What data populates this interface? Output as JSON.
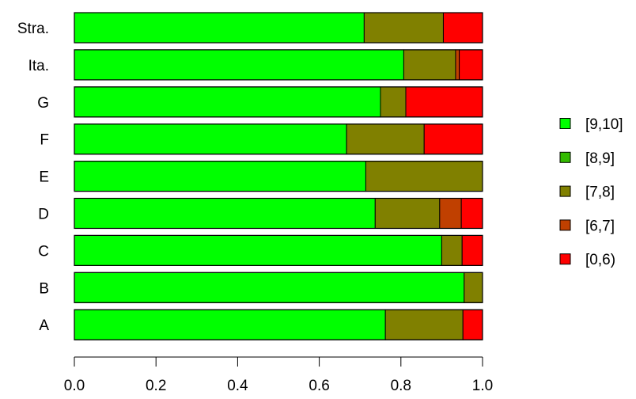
{
  "chart_data": {
    "type": "bar",
    "orientation": "horizontal",
    "stacked": true,
    "title": "",
    "xlabel": "",
    "ylabel": "",
    "xlim": [
      0,
      1
    ],
    "x_ticks": [
      0.0,
      0.2,
      0.4,
      0.6,
      0.8,
      1.0
    ],
    "x_tick_labels": [
      "0.0",
      "0.2",
      "0.4",
      "0.6",
      "0.8",
      "1.0"
    ],
    "categories": [
      "A",
      "B",
      "C",
      "D",
      "E",
      "F",
      "G",
      "Ita.",
      "Stra."
    ],
    "series": [
      {
        "name": "[9,10]",
        "color": "#00ff00",
        "values": [
          0.762,
          0.955,
          0.9,
          0.737,
          0.714,
          0.667,
          0.75,
          0.807,
          0.71
        ]
      },
      {
        "name": "[8,9]",
        "color": "#33bb00",
        "values": [
          0,
          0,
          0,
          0,
          0,
          0,
          0,
          0,
          0
        ]
      },
      {
        "name": "[7,8]",
        "color": "#808000",
        "values": [
          0.19,
          0.045,
          0.05,
          0.158,
          0.286,
          0.19,
          0.062,
          0.127,
          0.194
        ]
      },
      {
        "name": "[6,7]",
        "color": "#c04000",
        "values": [
          0,
          0,
          0,
          0.053,
          0,
          0,
          0,
          0.009,
          0
        ]
      },
      {
        "name": "[0,6)",
        "color": "#ff0000",
        "values": [
          0.048,
          0,
          0.05,
          0.052,
          0,
          0.143,
          0.188,
          0.057,
          0.096
        ]
      }
    ],
    "legend_position": "right",
    "grid": false
  }
}
